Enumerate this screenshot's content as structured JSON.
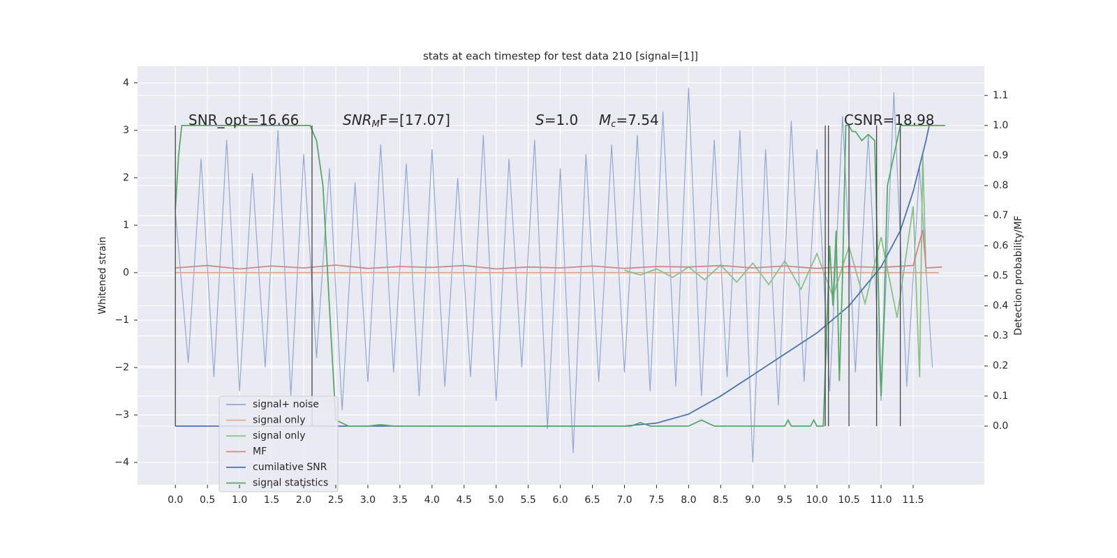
{
  "chart_data": {
    "type": "line",
    "title": "stats at each timestep for test data 210 [signal=[1]]",
    "y_label": "Whitened strain",
    "y2_label": "Detection probability/MF",
    "annotations": [
      [
        "SNR_opt=16.66"
      ],
      [
        "SNR",
        "M",
        "F=[17.07]"
      ],
      [
        "S",
        "=1.0"
      ],
      [
        "M",
        "c",
        "=7.54"
      ],
      [
        "CSNR=18.98"
      ]
    ],
    "xlim": [
      -0.59,
      12.61
    ],
    "ylim": [
      -4.47,
      4.35
    ],
    "y2lim": [
      -0.195,
      1.197
    ],
    "xticks": [
      {
        "value": 0,
        "label": "0.0"
      },
      {
        "value": 0.5,
        "label": "0.5"
      },
      {
        "value": 1,
        "label": "1.0"
      },
      {
        "value": 1.5,
        "label": "1.5"
      },
      {
        "value": 2,
        "label": "2.0"
      },
      {
        "value": 2.5,
        "label": "2.5"
      },
      {
        "value": 3,
        "label": "3.0"
      },
      {
        "value": 3.5,
        "label": "3.5"
      },
      {
        "value": 4,
        "label": "4.0"
      },
      {
        "value": 4.5,
        "label": "4.5"
      },
      {
        "value": 5,
        "label": "5.0"
      },
      {
        "value": 5.5,
        "label": "5.5"
      },
      {
        "value": 6,
        "label": "6.0"
      },
      {
        "value": 6.5,
        "label": "6.5"
      },
      {
        "value": 7,
        "label": "7.0"
      },
      {
        "value": 7.5,
        "label": "7.5"
      },
      {
        "value": 8,
        "label": "8.0"
      },
      {
        "value": 8.5,
        "label": "8.5"
      },
      {
        "value": 9,
        "label": "9.0"
      },
      {
        "value": 9.5,
        "label": "9.5"
      },
      {
        "value": 10,
        "label": "10.0"
      },
      {
        "value": 10.5,
        "label": "10.5"
      },
      {
        "value": 11,
        "label": "11.0"
      },
      {
        "value": 11.5,
        "label": "11.5"
      }
    ],
    "yticks": [
      {
        "value": -4,
        "label": "−4"
      },
      {
        "value": -3,
        "label": "−3"
      },
      {
        "value": -2,
        "label": "−2"
      },
      {
        "value": -1,
        "label": "−1"
      },
      0,
      1,
      2,
      3,
      4
    ],
    "y2ticks": [
      {
        "value": 0,
        "label": "0.0"
      },
      {
        "value": 0.1,
        "label": "0.1"
      },
      {
        "value": 0.2,
        "label": "0.2"
      },
      {
        "value": 0.3,
        "label": "0.3"
      },
      {
        "value": 0.4,
        "label": "0.4"
      },
      {
        "value": 0.5,
        "label": "0.5"
      },
      {
        "value": 0.6,
        "label": "0.6"
      },
      {
        "value": 0.7,
        "label": "0.7"
      },
      {
        "value": 0.8,
        "label": "0.8"
      },
      {
        "value": 0.9,
        "label": "0.9"
      },
      {
        "value": 1,
        "label": "1.0"
      },
      {
        "value": 1.1,
        "label": "1.1"
      }
    ],
    "grid": true,
    "legend": "lower left",
    "vlines": [
      0.0,
      2.13,
      10.13,
      10.18,
      10.5,
      10.93,
      11.3
    ],
    "vline_color": "#444444",
    "series": [
      {
        "name": "signal+ noise",
        "color": "#92a8d1",
        "x": [
          0,
          0.2,
          0.4,
          0.6,
          0.8,
          1.0,
          1.2,
          1.4,
          1.6,
          1.8,
          2.0,
          2.2,
          2.4,
          2.6,
          2.8,
          3.0,
          3.2,
          3.4,
          3.6,
          3.8,
          4.0,
          4.2,
          4.4,
          4.6,
          4.8,
          5.0,
          5.2,
          5.4,
          5.6,
          5.8,
          6.0,
          6.2,
          6.4,
          6.6,
          6.8,
          7.0,
          7.2,
          7.4,
          7.6,
          7.8,
          8.0,
          8.2,
          8.4,
          8.6,
          8.8,
          9.0,
          9.2,
          9.4,
          9.6,
          9.8,
          10.0,
          10.2,
          10.4,
          10.6,
          10.8,
          11.0,
          11.2,
          11.4,
          11.6,
          11.8
        ],
        "values": [
          1.3,
          -1.9,
          2.4,
          -2.2,
          2.8,
          -2.5,
          2.1,
          -2.0,
          3.0,
          -2.6,
          2.5,
          -1.8,
          2.2,
          -2.9,
          1.9,
          -2.3,
          2.7,
          -2.1,
          2.3,
          -2.6,
          2.6,
          -2.4,
          2.0,
          -2.2,
          2.9,
          -2.7,
          2.4,
          -2.0,
          2.8,
          -3.3,
          2.2,
          -3.8,
          2.5,
          -2.3,
          2.7,
          -2.1,
          2.9,
          -2.5,
          3.4,
          -2.4,
          3.9,
          -2.6,
          2.8,
          -2.2,
          3.0,
          -4.0,
          2.6,
          -2.8,
          3.2,
          -2.3,
          2.6,
          -2.5,
          3.3,
          -2.1,
          2.9,
          -2.7,
          3.8,
          -2.4,
          2.2,
          -2.0
        ]
      },
      {
        "name": "signal only",
        "color": "#e5a88a",
        "x": [
          0,
          11.9
        ],
        "values": [
          0,
          0
        ]
      },
      {
        "name": "signal only",
        "color": "#8cc08a",
        "x": [
          7.0,
          7.25,
          7.5,
          7.75,
          8.0,
          8.25,
          8.5,
          8.75,
          9.0,
          9.25,
          9.5,
          9.75,
          10.0,
          10.25,
          10.5,
          10.75,
          11.0,
          11.25,
          11.5,
          11.6,
          11.65,
          11.7
        ],
        "values": [
          0.05,
          -0.05,
          0.08,
          -0.1,
          0.12,
          -0.15,
          0.16,
          -0.2,
          0.2,
          -0.25,
          0.25,
          -0.35,
          0.4,
          -0.5,
          0.55,
          -0.65,
          0.75,
          -0.95,
          1.4,
          -2.2,
          2.5,
          0
        ]
      },
      {
        "name": "MF",
        "color": "#cc8888",
        "x": [
          0,
          0.5,
          1,
          1.5,
          2,
          2.5,
          3,
          3.5,
          4,
          4.5,
          5,
          5.5,
          6,
          6.5,
          7,
          7.5,
          8,
          8.5,
          9,
          9.5,
          10,
          10.5,
          11,
          11.5,
          11.65,
          11.7,
          11.95
        ],
        "values": [
          0.1,
          0.15,
          0.08,
          0.14,
          0.1,
          0.16,
          0.09,
          0.13,
          0.11,
          0.15,
          0.08,
          0.12,
          0.1,
          0.14,
          0.09,
          0.13,
          0.12,
          0.15,
          0.1,
          0.14,
          0.09,
          0.13,
          0.11,
          0.15,
          0.9,
          0.1,
          0.12
        ]
      },
      {
        "name": "cumilative SNR",
        "color": "#4c72b0",
        "axis": "y2",
        "x": [
          0,
          7.0,
          7.5,
          8.0,
          8.5,
          9.0,
          9.5,
          10.0,
          10.5,
          11.0,
          11.3,
          11.5,
          11.7,
          11.75
        ],
        "values": [
          0,
          0,
          0.01,
          0.04,
          0.1,
          0.17,
          0.24,
          0.31,
          0.4,
          0.53,
          0.65,
          0.78,
          0.95,
          1.0
        ]
      },
      {
        "name": "signal statistics",
        "color": "#55a868",
        "axis": "y2",
        "x": [
          0,
          0.05,
          0.1,
          0.5,
          1.5,
          2.0,
          2.1,
          2.2,
          2.3,
          2.4,
          2.5,
          2.7,
          3.0,
          3.2,
          3.4,
          4,
          7.1,
          7.25,
          7.4,
          8.0,
          8.2,
          8.4,
          9,
          9.5,
          9.55,
          9.6,
          9.9,
          9.95,
          10.0,
          10.1,
          10.2,
          10.25,
          10.3,
          10.35,
          10.4,
          10.45,
          10.5,
          10.55,
          10.6,
          10.7,
          10.8,
          10.9,
          11.0,
          11.05,
          11.1,
          11.15,
          11.2,
          11.3,
          11.4,
          11.5,
          11.6,
          11.7,
          12.0
        ],
        "values": [
          0.72,
          0.9,
          1.0,
          1.0,
          1.0,
          1.0,
          1.0,
          0.95,
          0.8,
          0.4,
          0.02,
          0.0,
          0.0,
          0.005,
          0.0,
          0.0,
          0.0,
          0.012,
          0.0,
          0.0,
          0.02,
          0.0,
          0.0,
          0.0,
          0.02,
          0.0,
          0.0,
          0.02,
          0.0,
          0.0,
          0.6,
          0.4,
          0.65,
          0.15,
          0.5,
          1.0,
          1.0,
          0.98,
          0.98,
          0.95,
          0.97,
          0.95,
          0.1,
          0.4,
          0.8,
          0.85,
          0.9,
          1.0,
          1.0,
          1.0,
          1.0,
          1.0,
          1.0
        ]
      }
    ]
  }
}
